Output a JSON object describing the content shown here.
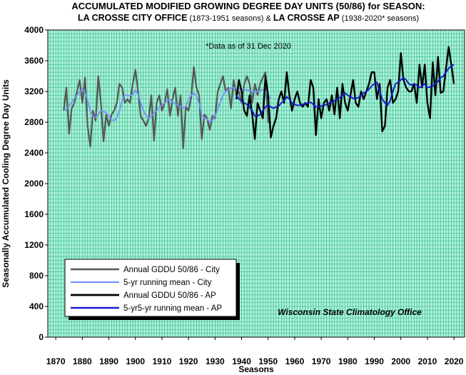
{
  "chart_data": {
    "type": "line",
    "title_line1": "ACCUMULATED MODIFIED GROWING DEGREE DAY UNITS (50/86) for SEASON:",
    "title_line2_a": "LA CROSSE CITY OFFICE",
    "title_line2_b": " (1873-1951 seasons) & ",
    "title_line2_c": "LA CROSSE AP",
    "title_line2_d": " (1938-2020* seasons)",
    "note": "*Data as of 31 Dec 2020",
    "agency": "Wisconsin State Climatology Office",
    "xlabel": "Seasons",
    "ylabel": "Seasonally Accumulated Cooling Degree Day Units",
    "xlim": [
      1867,
      2024
    ],
    "ylim": [
      0,
      4000
    ],
    "xticks": [
      "1870",
      "1880",
      "1890",
      "1900",
      "1910",
      "1920",
      "1930",
      "1940",
      "1950",
      "1960",
      "1970",
      "1980",
      "1990",
      "2000",
      "2010",
      "2020"
    ],
    "yticks": [
      "0",
      "400",
      "800",
      "1200",
      "1600",
      "2000",
      "2400",
      "2800",
      "3200",
      "3600",
      "4000"
    ],
    "grid": true,
    "legend_position": "lower-left",
    "colors": {
      "background": "#aef0d6",
      "grid": "#22b58a",
      "city": "#555555",
      "city_mean": "#7a8cff",
      "ap": "#000000",
      "ap_mean": "#1a1ad0"
    },
    "series": [
      {
        "name": "Annual GDDU 50/86 - City",
        "start_year": 1873,
        "values": [
          2950,
          3250,
          2650,
          2980,
          3050,
          3200,
          3350,
          3050,
          3380,
          2750,
          2480,
          2950,
          2820,
          3400,
          3050,
          2550,
          2900,
          2750,
          2900,
          2950,
          3050,
          3300,
          3250,
          3050,
          3100,
          3050,
          3300,
          3480,
          3200,
          2880,
          2820,
          2750,
          2850,
          3150,
          2560,
          3050,
          3150,
          2950,
          3050,
          3230,
          2880,
          3100,
          3250,
          2880,
          3150,
          2460,
          3000,
          2950,
          3120,
          3520,
          3250,
          3150,
          2580,
          2900,
          2850,
          2700,
          2880,
          2850,
          3200,
          3300,
          3400,
          3200,
          3250,
          2980,
          3350,
          3150,
          3200,
          3050,
          3300,
          3400,
          3300,
          3050,
          3300,
          3150,
          3300,
          3380,
          3450,
          2800,
          2800
        ]
      },
      {
        "name": "5-yr running mean - City",
        "start_year": 1873,
        "values": [
          2950,
          2970,
          3010,
          3060,
          3110,
          3150,
          3200,
          3230,
          3180,
          3080,
          2950,
          2880,
          2860,
          2900,
          2950,
          2940,
          2920,
          2880,
          2830,
          2820,
          2850,
          2950,
          3080,
          3150,
          3150,
          3140,
          3160,
          3220,
          3160,
          3050,
          2950,
          2880,
          2850,
          2880,
          2920,
          2950,
          3000,
          3020,
          3050,
          3080,
          3100,
          3060,
          3040,
          3020,
          3000,
          2980,
          3010,
          3090,
          3150,
          3180,
          3140,
          3040,
          2900,
          2850,
          2840,
          2800,
          2820,
          2880,
          2970,
          3060,
          3150,
          3200,
          3230,
          3240,
          3250,
          3240,
          3230,
          3230,
          3220,
          3220,
          3210,
          3200,
          3190,
          3200,
          3210,
          3230,
          3200,
          3150,
          3100
        ]
      },
      {
        "name": "Annual GDDU 50/86 - AP",
        "start_year": 1938,
        "values": [
          3100,
          3350,
          3200,
          2950,
          2880,
          3150,
          2900,
          2580,
          3050,
          2950,
          2850,
          3400,
          3150,
          2600,
          2750,
          2850,
          3100,
          3200,
          3050,
          3450,
          3150,
          2950,
          3100,
          3200,
          3050,
          3000,
          3050,
          3000,
          3350,
          3250,
          2630,
          3100,
          2850,
          3050,
          3100,
          2950,
          3150,
          2900,
          3250,
          2850,
          3300,
          3050,
          2950,
          3150,
          3350,
          3050,
          3000,
          3200,
          3100,
          3200,
          3300,
          3450,
          3450,
          3100,
          3300,
          2680,
          2750,
          3250,
          3350,
          3050,
          3100,
          3200,
          3700,
          3350,
          3250,
          3200,
          3200,
          3300,
          3050,
          3550,
          3250,
          3550,
          3050,
          2850,
          3580,
          3150,
          3650,
          3180,
          3200,
          3500,
          3780,
          3550,
          3300
        ]
      },
      {
        "name": "5-yr5-yr running mean - AP",
        "start_year": 1938,
        "values": [
          3150,
          3100,
          3080,
          3050,
          3030,
          3000,
          2950,
          2880,
          2880,
          2900,
          2950,
          3000,
          3020,
          3000,
          2980,
          3000,
          3010,
          3050,
          3080,
          3130,
          3100,
          3050,
          3030,
          3020,
          3020,
          3030,
          3040,
          3050,
          3060,
          3030,
          3000,
          3000,
          3010,
          3020,
          3030,
          3050,
          3060,
          3080,
          3100,
          3120,
          3150,
          3180,
          3150,
          3130,
          3110,
          3110,
          3120,
          3150,
          3180,
          3200,
          3230,
          3270,
          3300,
          3320,
          3200,
          3100,
          3050,
          3020,
          3080,
          3200,
          3300,
          3320,
          3350,
          3380,
          3350,
          3300,
          3280,
          3300,
          3280,
          3250,
          3270,
          3300,
          3250,
          3260,
          3270,
          3300,
          3330,
          3380,
          3400,
          3450,
          3500,
          3530,
          3550
        ]
      }
    ]
  }
}
